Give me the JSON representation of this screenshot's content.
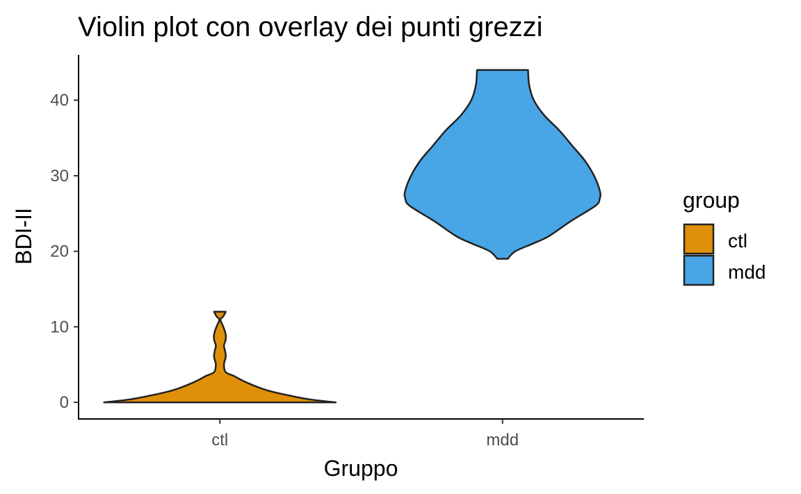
{
  "chart_data": {
    "type": "violin",
    "title": "Violin plot con overlay dei punti grezzi",
    "xlabel": "Gruppo",
    "ylabel": "BDI-II",
    "categories": [
      "ctl",
      "mdd"
    ],
    "ylim": [
      -2.2,
      46
    ],
    "yticks": [
      0,
      10,
      20,
      30,
      40
    ],
    "grid": false,
    "legend": {
      "title": "group",
      "position": "right",
      "entries": [
        {
          "label": "ctl",
          "color": "#E08F08"
        },
        {
          "label": "mdd",
          "color": "#48A5E6"
        }
      ]
    },
    "series": [
      {
        "group": "ctl",
        "color": "#E08F08",
        "range": [
          0,
          12
        ],
        "density_profile": [
          {
            "y": 0,
            "w": 1.0
          },
          {
            "y": 0.4,
            "w": 0.77
          },
          {
            "y": 1,
            "w": 0.57
          },
          {
            "y": 1.5,
            "w": 0.43
          },
          {
            "y": 2,
            "w": 0.33
          },
          {
            "y": 2.5,
            "w": 0.25
          },
          {
            "y": 3,
            "w": 0.18
          },
          {
            "y": 3.5,
            "w": 0.12
          },
          {
            "y": 4,
            "w": 0.05
          },
          {
            "y": 5,
            "w": 0.035
          },
          {
            "y": 6,
            "w": 0.05
          },
          {
            "y": 6.8,
            "w": 0.045
          },
          {
            "y": 7.5,
            "w": 0.035
          },
          {
            "y": 8.3,
            "w": 0.05
          },
          {
            "y": 9,
            "w": 0.05
          },
          {
            "y": 10,
            "w": 0.03
          },
          {
            "y": 10.9,
            "w": 0.005
          },
          {
            "y": 11.4,
            "w": 0.03
          },
          {
            "y": 12,
            "w": 0.05
          }
        ]
      },
      {
        "group": "mdd",
        "color": "#48A5E6",
        "range": [
          19,
          44
        ],
        "density_profile": [
          {
            "y": 19,
            "w": 0.045
          },
          {
            "y": 20,
            "w": 0.11
          },
          {
            "y": 21,
            "w": 0.26
          },
          {
            "y": 22,
            "w": 0.4
          },
          {
            "y": 24,
            "w": 0.59
          },
          {
            "y": 26,
            "w": 0.8
          },
          {
            "y": 27,
            "w": 0.84
          },
          {
            "y": 28,
            "w": 0.84
          },
          {
            "y": 30,
            "w": 0.79
          },
          {
            "y": 32,
            "w": 0.71
          },
          {
            "y": 34,
            "w": 0.6
          },
          {
            "y": 36,
            "w": 0.49
          },
          {
            "y": 38,
            "w": 0.36
          },
          {
            "y": 40,
            "w": 0.27
          },
          {
            "y": 42,
            "w": 0.23
          },
          {
            "y": 44,
            "w": 0.22
          }
        ]
      }
    ]
  }
}
